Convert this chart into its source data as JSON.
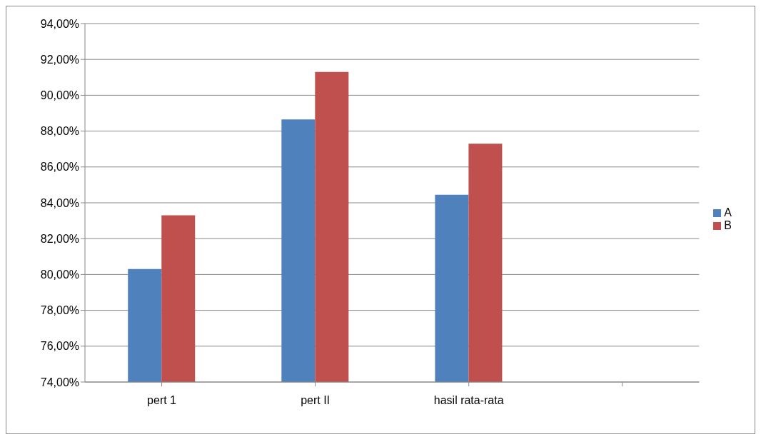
{
  "chart_data": {
    "type": "bar",
    "categories": [
      "pert 1",
      "pert II",
      "hasil rata-rata",
      null
    ],
    "series": [
      {
        "name": "A",
        "color": "#4f81bd",
        "values": [
          80.3,
          88.65,
          84.45,
          null
        ]
      },
      {
        "name": "B",
        "color": "#c0504d",
        "values": [
          83.3,
          91.3,
          87.3,
          null
        ]
      }
    ],
    "ylim": [
      74,
      94
    ],
    "yticks": [
      {
        "value": 74,
        "label": "74,00%"
      },
      {
        "value": 76,
        "label": "76,00%"
      },
      {
        "value": 78,
        "label": "78,00%"
      },
      {
        "value": 80,
        "label": "80,00%"
      },
      {
        "value": 82,
        "label": "82,00%"
      },
      {
        "value": 84,
        "label": "84,00%"
      },
      {
        "value": 86,
        "label": "86,00%"
      },
      {
        "value": 88,
        "label": "88,00%"
      },
      {
        "value": 90,
        "label": "90,00%"
      },
      {
        "value": 92,
        "label": "92,00%"
      },
      {
        "value": 94,
        "label": "94,00%"
      }
    ],
    "grid": "y",
    "legend": "right"
  }
}
